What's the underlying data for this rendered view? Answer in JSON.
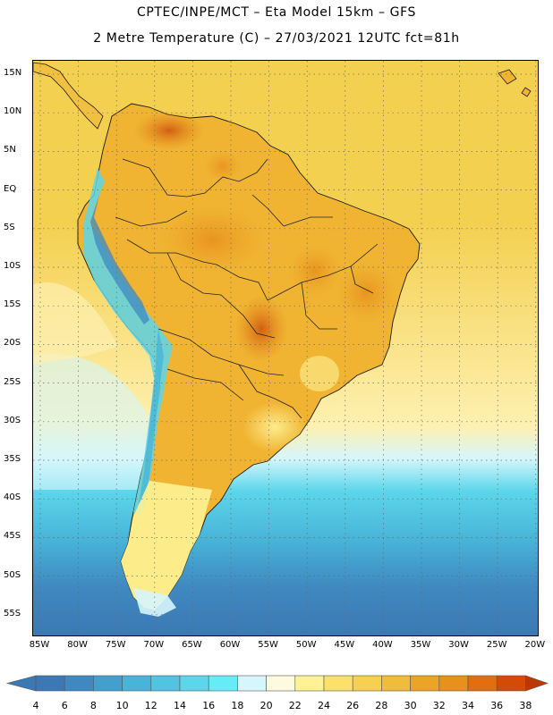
{
  "header": {
    "line1": "CPTEC/INPE/MCT –  Eta Model 15km – GFS",
    "line2": "2 Metre Temperature (C) – 27/03/2021 12UTC fct=81h"
  },
  "axes": {
    "lat_labels": [
      "15N",
      "10N",
      "5N",
      "EQ",
      "5S",
      "10S",
      "15S",
      "20S",
      "25S",
      "30S",
      "35S",
      "40S",
      "45S",
      "50S",
      "55S"
    ],
    "lon_labels": [
      "85W",
      "80W",
      "75W",
      "70W",
      "65W",
      "60W",
      "55W",
      "50W",
      "45W",
      "40W",
      "35W",
      "30W",
      "25W",
      "20W"
    ]
  },
  "colorbar": {
    "levels": [
      "4",
      "6",
      "8",
      "10",
      "12",
      "14",
      "16",
      "18",
      "20",
      "22",
      "24",
      "26",
      "28",
      "30",
      "32",
      "34",
      "36",
      "38"
    ],
    "colors": [
      "#3c78b4",
      "#3f88c0",
      "#43a0cc",
      "#48b4d8",
      "#50c4e0",
      "#5cd6ea",
      "#66ecf6",
      "#d6f6fc",
      "#fefae0",
      "#fef294",
      "#fbe06a",
      "#f6d050",
      "#f0bc3c",
      "#eca428",
      "#e8901c",
      "#e26e10",
      "#d24c08",
      "#ba3804"
    ]
  },
  "map": {
    "region": "South America",
    "variable": "2 Metre Temperature (C)",
    "ocean_gradient_by_latitude": [
      {
        "lat": "15N",
        "color": "#f4d050"
      },
      {
        "lat": "5S",
        "color": "#f4d050"
      },
      {
        "lat": "30S",
        "color": "#fef0b0"
      },
      {
        "lat": "34S",
        "color": "#d6f6fc"
      },
      {
        "lat": "38S",
        "color": "#5cd6ea"
      },
      {
        "lat": "44S",
        "color": "#48b4d8"
      },
      {
        "lat": "50S",
        "color": "#3f88c0"
      },
      {
        "lat": "56S",
        "color": "#3c78b4"
      }
    ]
  }
}
